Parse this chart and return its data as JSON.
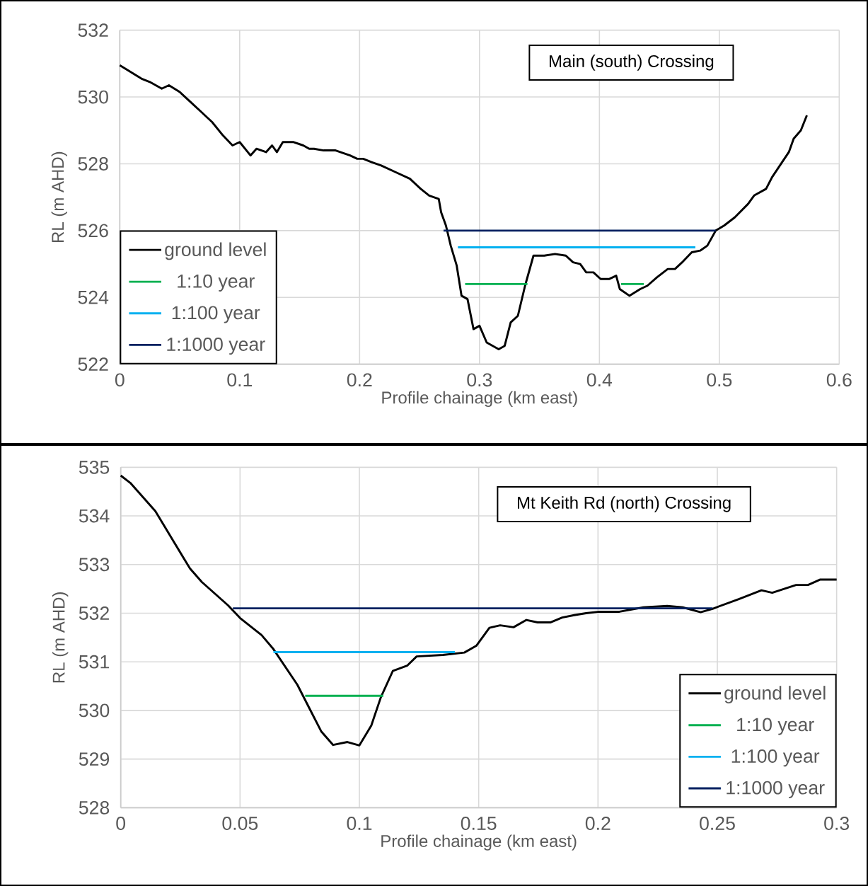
{
  "chart_data": [
    {
      "type": "line",
      "title": "Main (south) Crossing",
      "xlabel": "Profile chainage (km east)",
      "ylabel": "RL (m AHD)",
      "xlim": [
        0,
        0.6
      ],
      "ylim": [
        522,
        532
      ],
      "xticks": [
        0,
        0.1,
        0.2,
        0.3,
        0.4,
        0.5,
        0.6
      ],
      "yticks": [
        522,
        524,
        526,
        528,
        530,
        532
      ],
      "grid": true,
      "legend": "bottom left",
      "series": [
        {
          "name": "ground level",
          "color": "#000000",
          "x": [
            0,
            0.009,
            0.018,
            0.025,
            0.035,
            0.041,
            0.05,
            0.059,
            0.068,
            0.077,
            0.086,
            0.094,
            0.1,
            0.109,
            0.114,
            0.122,
            0.127,
            0.131,
            0.136,
            0.145,
            0.153,
            0.158,
            0.162,
            0.17,
            0.18,
            0.192,
            0.198,
            0.203,
            0.21,
            0.218,
            0.23,
            0.242,
            0.251,
            0.258,
            0.266,
            0.268,
            0.272,
            0.276,
            0.281,
            0.285,
            0.29,
            0.295,
            0.3,
            0.306,
            0.316,
            0.321,
            0.326,
            0.332,
            0.338,
            0.345,
            0.354,
            0.363,
            0.372,
            0.378,
            0.384,
            0.389,
            0.395,
            0.401,
            0.408,
            0.414,
            0.417,
            0.425,
            0.434,
            0.44,
            0.448,
            0.457,
            0.463,
            0.469,
            0.477,
            0.484,
            0.49,
            0.497,
            0.504,
            0.513,
            0.524,
            0.529,
            0.539,
            0.544,
            0.558,
            0.562,
            0.568,
            0.573
          ],
          "values": [
            530.95,
            530.75,
            530.55,
            530.45,
            530.25,
            530.35,
            530.15,
            529.85,
            529.55,
            529.25,
            528.85,
            528.55,
            528.65,
            528.25,
            528.45,
            528.35,
            528.55,
            528.35,
            528.65,
            528.65,
            528.55,
            528.45,
            528.45,
            528.4,
            528.4,
            528.25,
            528.15,
            528.15,
            528.05,
            527.95,
            527.75,
            527.55,
            527.25,
            527.05,
            526.95,
            526.55,
            526.15,
            525.55,
            524.95,
            524.05,
            523.95,
            523.05,
            523.15,
            522.65,
            522.45,
            522.55,
            523.25,
            523.45,
            524.35,
            525.25,
            525.25,
            525.3,
            525.25,
            525.05,
            525.0,
            524.75,
            524.75,
            524.55,
            524.55,
            524.65,
            524.25,
            524.05,
            524.25,
            524.35,
            524.6,
            524.85,
            524.85,
            525.05,
            525.35,
            525.4,
            525.55,
            526.0,
            526.15,
            526.4,
            526.8,
            527.05,
            527.25,
            527.6,
            528.35,
            528.75,
            529.0,
            529.45
          ]
        },
        {
          "name": "1:10 year",
          "color": "#00b050",
          "x": [
            0.288,
            0.34,
            0.38,
            0.418,
            0.437
          ],
          "values": [
            524.4,
            524.4,
            null,
            524.4,
            524.4
          ]
        },
        {
          "name": "1:100 year",
          "color": "#00b0f0",
          "x": [
            0.282,
            0.48
          ],
          "values": [
            525.5,
            525.5
          ]
        },
        {
          "name": "1:1000 year",
          "color": "#002060",
          "x": [
            0.27,
            0.497
          ],
          "values": [
            526.0,
            526.0
          ]
        }
      ]
    },
    {
      "type": "line",
      "title": "Mt Keith Rd (north) Crossing",
      "xlabel": "Profile chainage (km east)",
      "ylabel": "RL (m AHD)",
      "xlim": [
        0,
        0.3
      ],
      "ylim": [
        528,
        535
      ],
      "xticks": [
        0,
        0.05,
        0.1,
        0.15,
        0.2,
        0.25,
        0.3
      ],
      "yticks": [
        528,
        529,
        530,
        531,
        532,
        533,
        534,
        535
      ],
      "grid": true,
      "legend": "bottom right",
      "series": [
        {
          "name": "ground level",
          "color": "#000000",
          "x": [
            0,
            0.004,
            0.0145,
            0.02,
            0.029,
            0.034,
            0.045,
            0.05,
            0.059,
            0.064,
            0.074,
            0.079,
            0.084,
            0.089,
            0.095,
            0.1,
            0.105,
            0.109,
            0.114,
            0.12,
            0.124,
            0.135,
            0.144,
            0.149,
            0.1545,
            0.159,
            0.1646,
            0.17,
            0.1747,
            0.18,
            0.185,
            0.19,
            0.195,
            0.2005,
            0.209,
            0.219,
            0.229,
            0.2355,
            0.243,
            0.248,
            0.259,
            0.2685,
            0.273,
            0.283,
            0.288,
            0.293,
            0.3
          ],
          "values": [
            534.83,
            534.68,
            534.1,
            533.65,
            532.92,
            532.64,
            532.16,
            531.9,
            531.55,
            531.26,
            530.53,
            530.05,
            529.57,
            529.29,
            529.35,
            529.28,
            529.69,
            530.27,
            530.81,
            530.92,
            531.11,
            531.14,
            531.19,
            531.33,
            531.7,
            531.75,
            531.71,
            531.86,
            531.81,
            531.81,
            531.91,
            531.96,
            532.0,
            532.03,
            532.03,
            532.12,
            532.15,
            532.12,
            532.02,
            532.09,
            532.29,
            532.47,
            532.42,
            532.58,
            532.58,
            532.69,
            532.69
          ]
        },
        {
          "name": "1:10 year",
          "color": "#00b050",
          "x": [
            0.0773,
            0.11
          ],
          "values": [
            530.3,
            530.3
          ]
        },
        {
          "name": "1:100 year",
          "color": "#00b0f0",
          "x": [
            0.064,
            0.14
          ],
          "values": [
            531.2,
            531.2
          ]
        },
        {
          "name": "1:1000 year",
          "color": "#002060",
          "x": [
            0.047,
            0.248
          ],
          "values": [
            532.1,
            532.1
          ]
        }
      ]
    }
  ]
}
